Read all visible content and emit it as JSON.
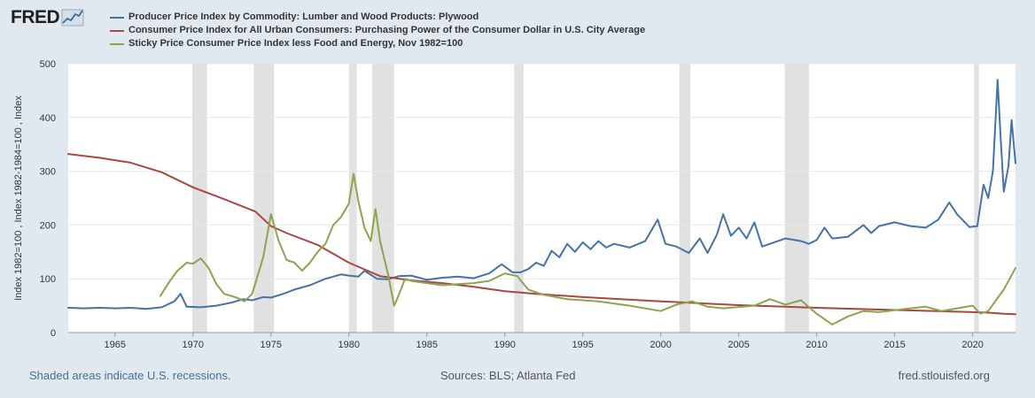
{
  "logo": {
    "text": "FRED",
    "icon": "chart-line-icon"
  },
  "legend": [
    {
      "name": "Producer Price Index by Commodity: Lumber and Wood Products: Plywood",
      "color": "#4572a7"
    },
    {
      "name": "Consumer Price Index for All Urban Consumers: Purchasing Power of the Consumer Dollar in U.S. City Average",
      "color": "#aa4643"
    },
    {
      "name": "Sticky Price Consumer Price Index less Food and Energy, Nov 1982=100",
      "color": "#89a54e"
    }
  ],
  "footer": {
    "left": "Shaded areas indicate U.S. recessions.",
    "middle": "Sources: BLS; Atlanta Fed",
    "right": "fred.stlouisfed.org"
  },
  "chart_data": {
    "type": "line",
    "ylabel": "Index 1982=100 , Index 1982-1984=100 , Index",
    "ylim": [
      0,
      500
    ],
    "yticks": [
      0,
      100,
      200,
      300,
      400,
      500
    ],
    "xlim": [
      1962.0,
      2022.75
    ],
    "xticks": [
      "1965",
      "1970",
      "1975",
      "1980",
      "1985",
      "1990",
      "1995",
      "2000",
      "2005",
      "2010",
      "2015",
      "2020"
    ],
    "grid": true,
    "recessions": [
      [
        1969.95,
        1970.9
      ],
      [
        1973.9,
        1975.2
      ],
      [
        1980.0,
        1980.5
      ],
      [
        1981.5,
        1982.9
      ],
      [
        1990.6,
        1991.2
      ],
      [
        2001.2,
        2001.9
      ],
      [
        2007.95,
        2009.5
      ],
      [
        2020.1,
        2020.4
      ]
    ],
    "series": [
      {
        "name": "Producer Price Index by Commodity: Lumber and Wood Products: Plywood",
        "color": "#4572a7",
        "points": [
          [
            1962.0,
            46
          ],
          [
            1963.0,
            45
          ],
          [
            1964.0,
            46
          ],
          [
            1965.0,
            45
          ],
          [
            1966.0,
            46
          ],
          [
            1967.0,
            44
          ],
          [
            1968.0,
            47
          ],
          [
            1968.8,
            58
          ],
          [
            1969.2,
            72
          ],
          [
            1969.6,
            48
          ],
          [
            1970.5,
            47
          ],
          [
            1971.5,
            50
          ],
          [
            1972.5,
            56
          ],
          [
            1973.2,
            62
          ],
          [
            1973.8,
            60
          ],
          [
            1974.5,
            66
          ],
          [
            1975.0,
            65
          ],
          [
            1975.8,
            72
          ],
          [
            1976.5,
            80
          ],
          [
            1977.5,
            88
          ],
          [
            1978.5,
            100
          ],
          [
            1979.5,
            108
          ],
          [
            1980.0,
            106
          ],
          [
            1980.6,
            104
          ],
          [
            1981.0,
            115
          ],
          [
            1981.8,
            100
          ],
          [
            1982.5,
            99
          ],
          [
            1983.2,
            105
          ],
          [
            1984.0,
            106
          ],
          [
            1985.0,
            98
          ],
          [
            1986.0,
            102
          ],
          [
            1987.0,
            104
          ],
          [
            1988.0,
            101
          ],
          [
            1989.0,
            110
          ],
          [
            1989.8,
            127
          ],
          [
            1990.5,
            112
          ],
          [
            1991.0,
            112
          ],
          [
            1991.5,
            118
          ],
          [
            1992.0,
            130
          ],
          [
            1992.5,
            124
          ],
          [
            1993.0,
            152
          ],
          [
            1993.5,
            140
          ],
          [
            1994.0,
            165
          ],
          [
            1994.5,
            150
          ],
          [
            1995.0,
            168
          ],
          [
            1995.5,
            155
          ],
          [
            1996.0,
            170
          ],
          [
            1996.5,
            158
          ],
          [
            1997.0,
            165
          ],
          [
            1998.0,
            158
          ],
          [
            1999.0,
            170
          ],
          [
            1999.8,
            210
          ],
          [
            2000.3,
            165
          ],
          [
            2001.0,
            160
          ],
          [
            2001.8,
            148
          ],
          [
            2002.5,
            175
          ],
          [
            2003.0,
            148
          ],
          [
            2003.6,
            182
          ],
          [
            2004.0,
            220
          ],
          [
            2004.5,
            180
          ],
          [
            2005.0,
            195
          ],
          [
            2005.5,
            175
          ],
          [
            2006.0,
            205
          ],
          [
            2006.5,
            160
          ],
          [
            2007.0,
            165
          ],
          [
            2008.0,
            175
          ],
          [
            2009.0,
            170
          ],
          [
            2009.5,
            165
          ],
          [
            2010.0,
            172
          ],
          [
            2010.5,
            195
          ],
          [
            2011.0,
            175
          ],
          [
            2012.0,
            178
          ],
          [
            2013.0,
            200
          ],
          [
            2013.5,
            185
          ],
          [
            2014.0,
            198
          ],
          [
            2015.0,
            205
          ],
          [
            2016.0,
            198
          ],
          [
            2017.0,
            195
          ],
          [
            2017.8,
            210
          ],
          [
            2018.5,
            242
          ],
          [
            2019.0,
            220
          ],
          [
            2019.8,
            196
          ],
          [
            2020.3,
            198
          ],
          [
            2020.7,
            275
          ],
          [
            2021.0,
            250
          ],
          [
            2021.3,
            300
          ],
          [
            2021.6,
            470
          ],
          [
            2021.8,
            360
          ],
          [
            2022.0,
            262
          ],
          [
            2022.3,
            310
          ],
          [
            2022.5,
            395
          ],
          [
            2022.75,
            315
          ]
        ]
      },
      {
        "name": "Consumer Price Index for All Urban Consumers: Purchasing Power of the Consumer Dollar in U.S. City Average",
        "color": "#aa4643",
        "points": [
          [
            1962.0,
            332
          ],
          [
            1964.0,
            325
          ],
          [
            1966.0,
            316
          ],
          [
            1968.0,
            298
          ],
          [
            1970.0,
            270
          ],
          [
            1972.0,
            248
          ],
          [
            1974.0,
            225
          ],
          [
            1975.0,
            198
          ],
          [
            1976.0,
            185
          ],
          [
            1978.0,
            163
          ],
          [
            1980.0,
            130
          ],
          [
            1982.0,
            105
          ],
          [
            1984.0,
            97
          ],
          [
            1986.0,
            92
          ],
          [
            1988.0,
            85
          ],
          [
            1990.0,
            77
          ],
          [
            1992.0,
            72
          ],
          [
            1995.0,
            66
          ],
          [
            2000.0,
            58
          ],
          [
            2005.0,
            51
          ],
          [
            2010.0,
            46
          ],
          [
            2015.0,
            42
          ],
          [
            2020.0,
            38
          ],
          [
            2021.0,
            37
          ],
          [
            2022.0,
            35
          ],
          [
            2022.75,
            34
          ]
        ]
      },
      {
        "name": "Sticky Price Consumer Price Index less Food and Energy, Nov 1982=100",
        "color": "#89a54e",
        "points": [
          [
            1967.9,
            68
          ],
          [
            1968.5,
            95
          ],
          [
            1969.0,
            115
          ],
          [
            1969.6,
            130
          ],
          [
            1970.0,
            128
          ],
          [
            1970.5,
            138
          ],
          [
            1971.0,
            120
          ],
          [
            1971.5,
            90
          ],
          [
            1972.0,
            72
          ],
          [
            1972.8,
            65
          ],
          [
            1973.3,
            58
          ],
          [
            1973.8,
            72
          ],
          [
            1974.5,
            140
          ],
          [
            1975.0,
            220
          ],
          [
            1975.5,
            170
          ],
          [
            1976.0,
            135
          ],
          [
            1976.5,
            130
          ],
          [
            1977.0,
            115
          ],
          [
            1977.5,
            130
          ],
          [
            1978.0,
            150
          ],
          [
            1978.5,
            165
          ],
          [
            1979.0,
            200
          ],
          [
            1979.5,
            215
          ],
          [
            1980.0,
            240
          ],
          [
            1980.3,
            295
          ],
          [
            1980.6,
            245
          ],
          [
            1981.0,
            195
          ],
          [
            1981.4,
            170
          ],
          [
            1981.7,
            230
          ],
          [
            1982.0,
            170
          ],
          [
            1982.5,
            110
          ],
          [
            1982.9,
            50
          ],
          [
            1983.2,
            70
          ],
          [
            1983.6,
            100
          ],
          [
            1984.0,
            96
          ],
          [
            1985.0,
            92
          ],
          [
            1986.0,
            88
          ],
          [
            1987.0,
            90
          ],
          [
            1988.0,
            92
          ],
          [
            1989.0,
            96
          ],
          [
            1990.0,
            110
          ],
          [
            1990.8,
            105
          ],
          [
            1991.5,
            80
          ],
          [
            1992.5,
            70
          ],
          [
            1994.0,
            62
          ],
          [
            1996.0,
            58
          ],
          [
            1998.0,
            50
          ],
          [
            2000.0,
            40
          ],
          [
            2001.0,
            52
          ],
          [
            2002.0,
            58
          ],
          [
            2003.0,
            48
          ],
          [
            2004.0,
            45
          ],
          [
            2006.0,
            50
          ],
          [
            2007.0,
            62
          ],
          [
            2008.0,
            52
          ],
          [
            2009.0,
            60
          ],
          [
            2010.0,
            35
          ],
          [
            2011.0,
            15
          ],
          [
            2012.0,
            30
          ],
          [
            2013.0,
            40
          ],
          [
            2014.0,
            38
          ],
          [
            2016.0,
            45
          ],
          [
            2017.0,
            48
          ],
          [
            2018.0,
            40
          ],
          [
            2019.0,
            45
          ],
          [
            2020.0,
            50
          ],
          [
            2020.5,
            35
          ],
          [
            2021.0,
            40
          ],
          [
            2021.5,
            60
          ],
          [
            2022.0,
            80
          ],
          [
            2022.75,
            120
          ]
        ]
      }
    ]
  }
}
